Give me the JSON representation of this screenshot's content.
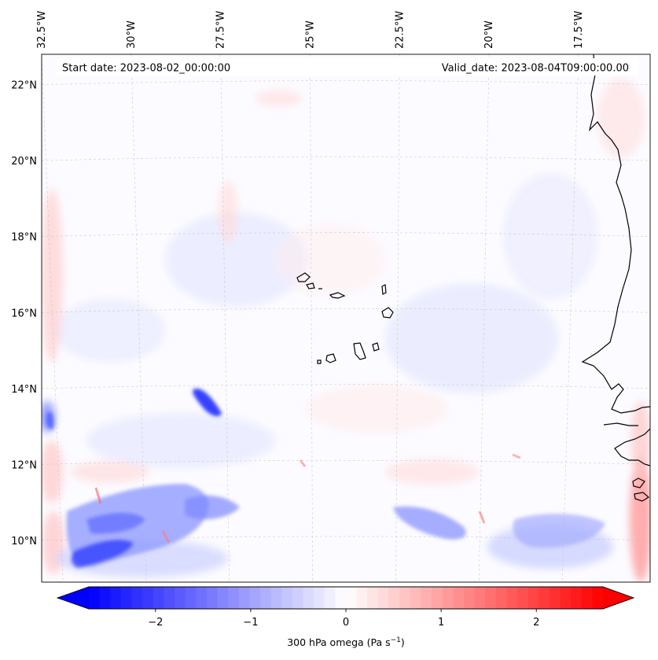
{
  "map": {
    "start_date_label": "Start date: 2023-08-02_00:00:00",
    "valid_date_label": "Valid_date: 2023-08-04T09:00:00.00",
    "field": "300 hPa omega",
    "colormap": "bwr",
    "lon_range": [
      -32.5,
      -15.5
    ],
    "lat_range": [
      8.9,
      22.8
    ],
    "lon_ticks": [
      {
        "value": -32.5,
        "label": "32.5°W"
      },
      {
        "value": -30.0,
        "label": "30°W"
      },
      {
        "value": -27.5,
        "label": "27.5°W"
      },
      {
        "value": -25.0,
        "label": "25°W"
      },
      {
        "value": -22.5,
        "label": "22.5°W"
      },
      {
        "value": -20.0,
        "label": "20°W"
      },
      {
        "value": -17.5,
        "label": "17.5°W"
      }
    ],
    "lat_ticks": [
      {
        "value": 22,
        "label": "22°N"
      },
      {
        "value": 20,
        "label": "20°N"
      },
      {
        "value": 18,
        "label": "18°N"
      },
      {
        "value": 16,
        "label": "16°N"
      },
      {
        "value": 14,
        "label": "14°N"
      },
      {
        "value": 12,
        "label": "12°N"
      },
      {
        "value": 10,
        "label": "10°N"
      }
    ],
    "gridlines": true,
    "features": [
      {
        "name": "Cape Verde Islands",
        "type": "islands"
      },
      {
        "name": "West African coastline",
        "type": "coastline"
      }
    ]
  },
  "colorbar": {
    "label": "300 hPa omega (Pa s",
    "label_sup": "−1",
    "label_close": ")",
    "min": -2.7,
    "max": 2.7,
    "extend": "both",
    "ticks": [
      {
        "value": -2,
        "label": "−2"
      },
      {
        "value": -1,
        "label": "−1"
      },
      {
        "value": 0,
        "label": "0"
      },
      {
        "value": 1,
        "label": "1"
      },
      {
        "value": 2,
        "label": "2"
      }
    ],
    "colors": {
      "negative": "#0000ff",
      "zero": "#ffffff",
      "positive": "#ff0000"
    }
  }
}
